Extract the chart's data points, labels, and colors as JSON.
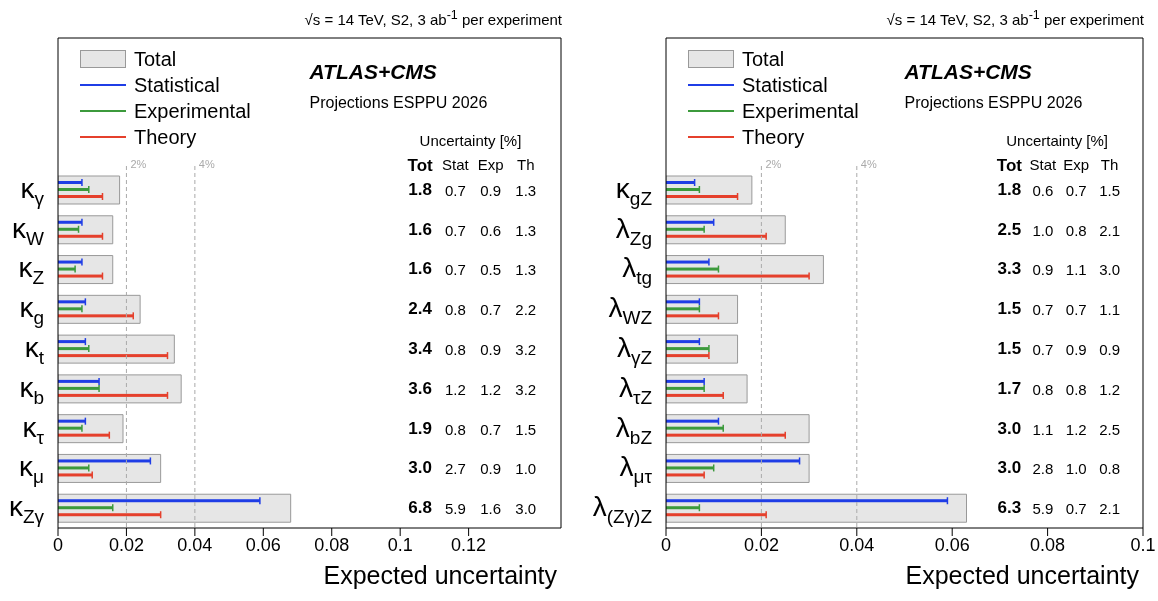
{
  "chart_data": [
    {
      "type": "bar",
      "orientation": "horizontal",
      "title": "ATLAS+CMS",
      "subtitle": "Projections ESPPU 2026",
      "xlabel": "Expected uncertainty",
      "categories": [
        "κ$_{γ}$",
        "κ$_{W}$",
        "κ$_{Z}$",
        "κ$_{g}$",
        "κ$_{t}$",
        "κ$_{b}$",
        "κ$_{τ}$",
        "κ$_{μ}$",
        "κ$_{Zγ}$"
      ],
      "series": [
        {
          "name": "Total",
          "color": "#e6e6e6",
          "values": [
            0.018,
            0.016,
            0.016,
            0.024,
            0.034,
            0.036,
            0.019,
            0.03,
            0.068
          ]
        },
        {
          "name": "Statistical",
          "color": "#1f3de6",
          "values": [
            0.007,
            0.007,
            0.007,
            0.008,
            0.008,
            0.012,
            0.008,
            0.027,
            0.059
          ]
        },
        {
          "name": "Experimental",
          "color": "#3c9a3c",
          "values": [
            0.009,
            0.006,
            0.005,
            0.007,
            0.009,
            0.012,
            0.007,
            0.009,
            0.016
          ]
        },
        {
          "name": "Theory",
          "color": "#e5402c",
          "values": [
            0.013,
            0.013,
            0.013,
            0.022,
            0.032,
            0.032,
            0.015,
            0.01,
            0.03
          ]
        }
      ],
      "xlim": [
        0,
        0.147
      ],
      "xticks": [
        0,
        0.02,
        0.04,
        0.06,
        0.08,
        0.1,
        0.12
      ],
      "ref_lines": [
        {
          "axis": "x",
          "value": 0.02,
          "label": "2%",
          "color": "#aaaaaa",
          "line_style": "dashed"
        },
        {
          "axis": "x",
          "value": 0.04,
          "label": "4%",
          "color": "#aaaaaa",
          "line_style": "dashed"
        }
      ],
      "legend": "top left",
      "annotations": [
        "√s = 14 TeV, S2, 3 ab$^{-1}$ per experiment",
        "Uncertainty [%]",
        "Tot",
        "Stat",
        "Exp",
        "Th",
        "1.8",
        "0.7",
        "0.9",
        "1.3",
        "1.6",
        "0.7",
        "0.6",
        "1.3",
        "1.6",
        "0.7",
        "0.5",
        "1.3",
        "2.4",
        "0.8",
        "0.7",
        "2.2",
        "3.4",
        "0.8",
        "0.9",
        "3.2",
        "3.6",
        "1.2",
        "1.2",
        "3.2",
        "1.9",
        "0.8",
        "0.7",
        "1.5",
        "3.0",
        "2.7",
        "0.9",
        "1.0",
        "6.8",
        "5.9",
        "1.6",
        "3.0"
      ]
    },
    {
      "type": "bar",
      "orientation": "horizontal",
      "title": "ATLAS+CMS",
      "subtitle": "Projections ESPPU 2026",
      "xlabel": "Expected uncertainty",
      "categories": [
        "κ$_{gZ}$",
        "λ$_{Zg}$",
        "λ$_{tg}$",
        "λ$_{WZ}$",
        "λ$_{γZ}$",
        "λ$_{τZ}$",
        "λ$_{bZ}$",
        "λ$_{μτ}$",
        "λ$_{(Zγ)Z}$"
      ],
      "series": [
        {
          "name": "Total",
          "color": "#e6e6e6",
          "values": [
            0.018,
            0.025,
            0.033,
            0.015,
            0.015,
            0.017,
            0.03,
            0.03,
            0.063
          ]
        },
        {
          "name": "Statistical",
          "color": "#1f3de6",
          "values": [
            0.006,
            0.01,
            0.009,
            0.007,
            0.007,
            0.008,
            0.011,
            0.028,
            0.059
          ]
        },
        {
          "name": "Experimental",
          "color": "#3c9a3c",
          "values": [
            0.007,
            0.008,
            0.011,
            0.007,
            0.009,
            0.008,
            0.012,
            0.01,
            0.007
          ]
        },
        {
          "name": "Theory",
          "color": "#e5402c",
          "values": [
            0.015,
            0.021,
            0.03,
            0.011,
            0.009,
            0.012,
            0.025,
            0.008,
            0.021
          ]
        }
      ],
      "xlim": [
        0,
        0.1
      ],
      "xticks": [
        0,
        0.02,
        0.04,
        0.06,
        0.08,
        0.1
      ],
      "ref_lines": [
        {
          "axis": "x",
          "value": 0.02,
          "label": "2%",
          "color": "#aaaaaa",
          "line_style": "dashed"
        },
        {
          "axis": "x",
          "value": 0.04,
          "label": "4%",
          "color": "#aaaaaa",
          "line_style": "dashed"
        }
      ],
      "legend": "top left",
      "annotations": [
        "√s = 14 TeV, S2, 3 ab$^{-1}$ per experiment",
        "Uncertainty [%]",
        "Tot",
        "Stat",
        "Exp",
        "Th",
        "1.8",
        "0.6",
        "0.7",
        "1.5",
        "2.5",
        "1.0",
        "0.8",
        "2.1",
        "3.3",
        "0.9",
        "1.1",
        "3.0",
        "1.5",
        "0.7",
        "0.7",
        "1.1",
        "1.5",
        "0.7",
        "0.9",
        "0.9",
        "1.7",
        "0.8",
        "0.8",
        "1.2",
        "3.0",
        "1.1",
        "1.2",
        "2.5",
        "3.0",
        "2.8",
        "1.0",
        "0.8",
        "6.3",
        "5.9",
        "0.7",
        "2.1"
      ]
    }
  ]
}
